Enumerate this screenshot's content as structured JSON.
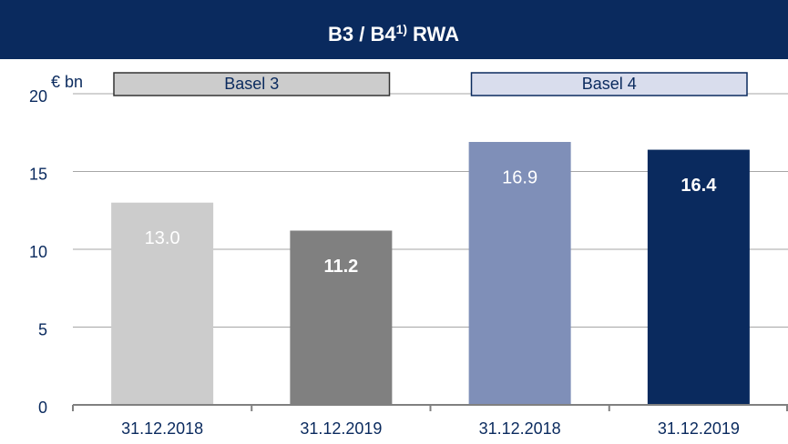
{
  "chart_data": {
    "type": "bar",
    "title": {
      "text": "B3 / B4",
      "footnote": "1)",
      "suffix": "RWA"
    },
    "unit_label": "€ bn",
    "categories": [
      "31.12.2018",
      "31.12.2019",
      "31.12.2018",
      "31.12.2019"
    ],
    "values": [
      13.0,
      11.2,
      16.9,
      16.4
    ],
    "value_labels": [
      "13.0",
      "11.2",
      "16.9",
      "16.4"
    ],
    "value_label_bold": [
      false,
      true,
      false,
      true
    ],
    "colors": [
      "#cccccc",
      "#808080",
      "#7f8fb8",
      "#0a2a5e"
    ],
    "groups": [
      {
        "label": "Basel 3",
        "fill": "#cccccc",
        "border": "#333333",
        "categories": [
          0,
          1
        ]
      },
      {
        "label": "Basel 4",
        "fill": "#d9dded",
        "border": "#0a2a5e",
        "categories": [
          2,
          3
        ]
      }
    ],
    "ylim": [
      0,
      20
    ],
    "yticks": [
      0,
      5,
      10,
      15,
      20
    ],
    "grid": true
  }
}
